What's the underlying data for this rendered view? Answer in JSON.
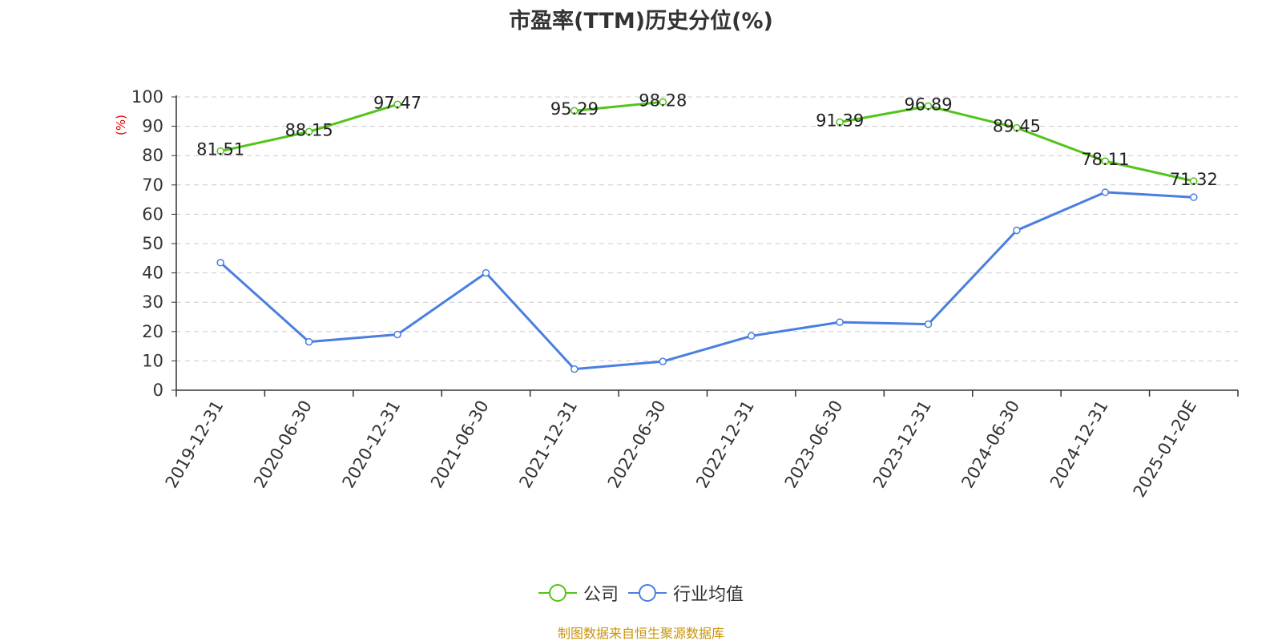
{
  "title": "市盈率(TTM)历史分位(%)",
  "source": "制图数据来自恒生聚源数据库",
  "chart_data": {
    "type": "line",
    "title": "市盈率(TTM)历史分位(%)",
    "ylabel": "(%)",
    "xlabel": "",
    "ylim": [
      0,
      100
    ],
    "yticks": [
      0,
      10,
      20,
      30,
      40,
      50,
      60,
      70,
      80,
      90,
      100
    ],
    "grid": true,
    "legend_position": "bottom",
    "categories": [
      "2019-12-31",
      "2020-06-30",
      "2020-12-31",
      "2021-06-30",
      "2021-12-31",
      "2022-06-30",
      "2022-12-31",
      "2023-06-30",
      "2023-12-31",
      "2024-06-30",
      "2024-12-31",
      "2025-01-20E"
    ],
    "series": [
      {
        "name": "公司",
        "color": "#52c41a",
        "show_labels": true,
        "values": [
          81.51,
          88.15,
          97.47,
          null,
          95.29,
          98.28,
          null,
          91.39,
          96.89,
          89.45,
          78.11,
          71.32
        ]
      },
      {
        "name": "行业均值",
        "color": "#4a7ee0",
        "show_labels": false,
        "values": [
          43.5,
          16.5,
          19.0,
          40.0,
          7.2,
          9.8,
          18.5,
          23.2,
          22.5,
          54.5,
          67.5,
          65.8
        ]
      }
    ]
  }
}
